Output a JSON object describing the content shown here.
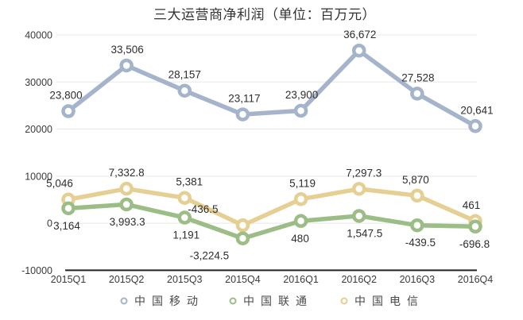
{
  "title": "三大运营商净利润（单位：百万元）",
  "chart_data": {
    "type": "line",
    "title": "三大运营商净利润（单位：百万元）",
    "unit": "百万元",
    "categories": [
      "2015Q1",
      "2015Q2",
      "2015Q3",
      "2015Q4",
      "2016Q1",
      "2016Q2",
      "2016Q3",
      "2016Q4"
    ],
    "series": [
      {
        "name": "中国移动",
        "color": "#a4b4ca",
        "values": [
          23800,
          33506,
          28157,
          23117,
          23900,
          36672,
          27528,
          20641
        ],
        "labels": [
          "23,800",
          "33,506",
          "28,157",
          "23,117",
          "23,900",
          "36,672",
          "27,528",
          "20,641"
        ],
        "label_side": "above",
        "label_dx": [
          -3,
          1,
          0,
          2,
          1,
          1,
          1,
          2
        ]
      },
      {
        "name": "中国联通",
        "color": "#9cbd85",
        "values": [
          3164,
          3993.3,
          1191,
          -3224.5,
          480,
          1547.5,
          -439.5,
          -696.8
        ],
        "labels": [
          "3,164",
          "3,993.3",
          "1,191",
          "-3,224.5",
          "480",
          "1,547.5",
          "-439.5",
          "-696.8"
        ],
        "label_side": "below",
        "label_dx": [
          -2,
          1,
          2,
          -42,
          -1,
          7,
          4,
          -1
        ]
      },
      {
        "name": "中国电信",
        "color": "#e6cf92",
        "values": [
          5046,
          7332.8,
          5381,
          -436.5,
          5119,
          7297.3,
          5870,
          461
        ],
        "labels": [
          "5,046",
          "7,332.8",
          "5,381",
          "-436.5",
          "5,119",
          "7,297.3",
          "5,870",
          "461"
        ],
        "label_side": "above",
        "label_dx": [
          -11,
          0,
          6,
          -50,
          2,
          6,
          -2,
          -5
        ]
      }
    ],
    "y_axis": {
      "ticks": [
        40000,
        30000,
        20000,
        10000,
        0,
        -10000
      ],
      "tick_labels": [
        "40000",
        "30000",
        "20000",
        "10000",
        "0",
        "-10000"
      ],
      "range": [
        -10000,
        40000
      ]
    },
    "grid": true,
    "legend_position": "bottom",
    "legend": [
      "中国移动",
      "中国联通",
      "中国电信"
    ]
  },
  "colors": {
    "grid": "#e8e8e8",
    "axis_line": "#222222",
    "data_label_text": "#2e2e2e",
    "tick_text": "#3a3a3a",
    "legend_text": "#4a4a4a",
    "title_text": "#333333",
    "background": "#ffffff"
  }
}
